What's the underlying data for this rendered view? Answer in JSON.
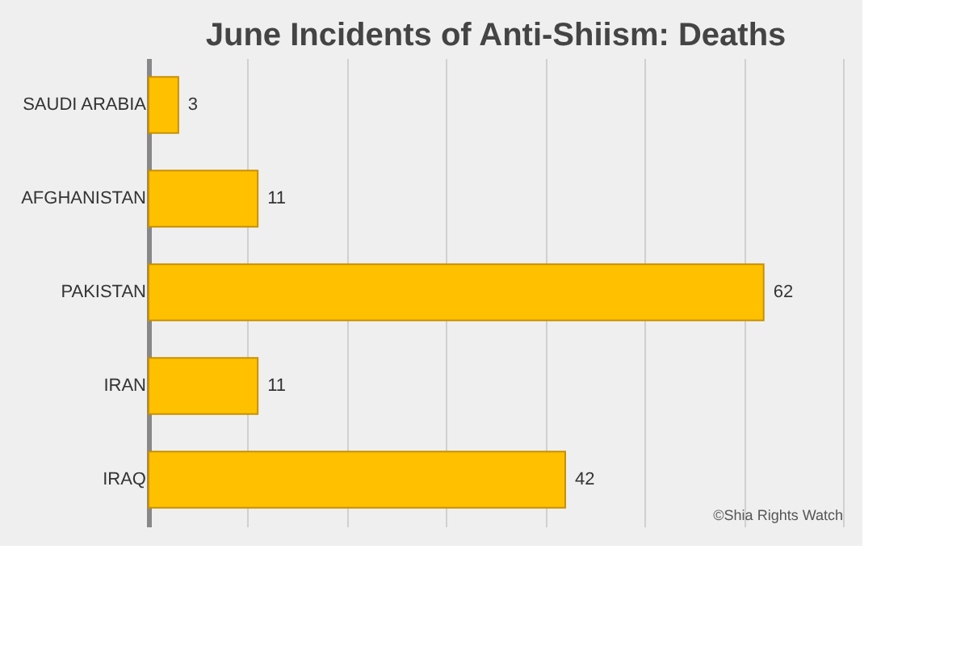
{
  "chart_data": {
    "type": "bar",
    "orientation": "horizontal",
    "title": "June Incidents of Anti-Shiism: Deaths",
    "categories": [
      "SAUDI ARABIA",
      "AFGHANISTAN",
      "PAKISTAN",
      "IRAN",
      "IRAQ"
    ],
    "values": [
      3,
      11,
      62,
      11,
      42
    ],
    "color": "#ffc000",
    "data_labels": true,
    "xlim": [
      0,
      70
    ],
    "xticks": [
      {
        "value": 0,
        "label": null
      },
      {
        "value": 10,
        "label": null
      },
      {
        "value": 20,
        "label": null
      },
      {
        "value": 30,
        "label": null
      },
      {
        "value": 40,
        "label": null
      },
      {
        "value": 50,
        "label": null
      },
      {
        "value": 60,
        "label": null
      },
      {
        "value": 70,
        "label": null
      }
    ],
    "grid": "x",
    "tick_labels": "y",
    "annotations": [
      "©Shia Rights Watch"
    ]
  }
}
